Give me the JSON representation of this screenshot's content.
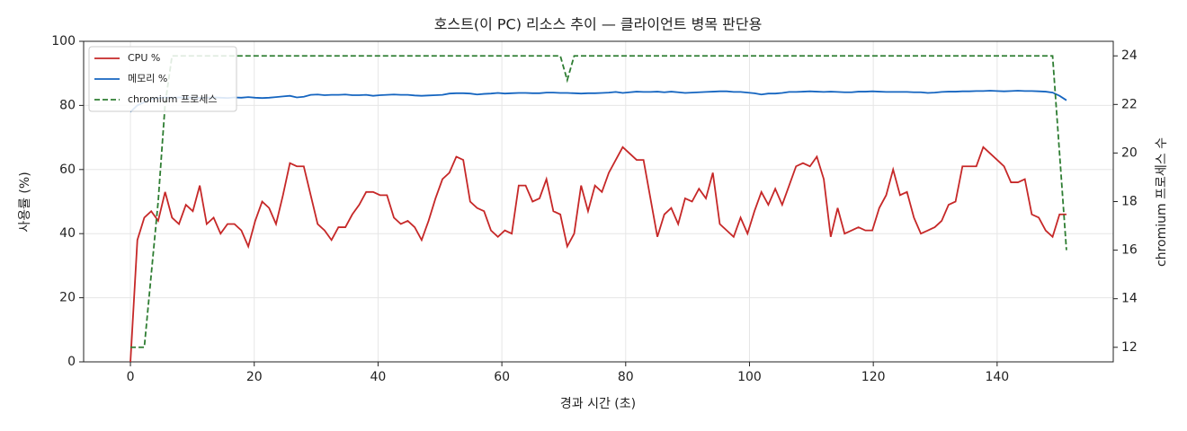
{
  "chart_data": {
    "type": "line",
    "title": "호스트(이 PC) 리소스 추이 — 클라이언트 병목 판단용",
    "xlabel": "경과 시간 (초)",
    "ylabel": "사용률 (%)",
    "y2label": "chromium 프로세스 수",
    "x": [
      0,
      1.12,
      2.24,
      3.36,
      4.48,
      5.6,
      6.72,
      7.84,
      8.96,
      10.08,
      11.2,
      12.32,
      13.44,
      14.56,
      15.68,
      16.8,
      17.92,
      19.04,
      20.16,
      21.28,
      22.4,
      23.52,
      24.64,
      25.76,
      26.88,
      28,
      29.12,
      30.24,
      31.36,
      32.48,
      33.6,
      34.72,
      35.84,
      36.96,
      38.08,
      39.2,
      40.32,
      41.44,
      42.56,
      43.68,
      44.8,
      45.92,
      47.04,
      48.16,
      49.28,
      50.4,
      51.52,
      52.64,
      53.76,
      54.88,
      56,
      57.12,
      58.24,
      59.36,
      60.48,
      61.6,
      62.72,
      63.84,
      64.96,
      66.08,
      67.2,
      68.32,
      69.44,
      70.56,
      71.68,
      72.8,
      73.92,
      75.04,
      76.16,
      77.28,
      78.4,
      79.52,
      80.64,
      81.76,
      82.88,
      84,
      85.12,
      86.24,
      87.36,
      88.48,
      89.6,
      90.72,
      91.84,
      92.96,
      94.08,
      95.2,
      96.32,
      97.44,
      98.56,
      99.68,
      100.8,
      101.92,
      103.04,
      104.16,
      105.28,
      106.4,
      107.52,
      108.64,
      109.76,
      110.88,
      112,
      113.12,
      114.24,
      115.36,
      116.48,
      117.6,
      118.72,
      119.84,
      120.96,
      122.08,
      123.2,
      124.32,
      125.44,
      126.56,
      127.68,
      128.8,
      129.92,
      131.04,
      132.16,
      133.28,
      134.4,
      135.52,
      136.64,
      137.76,
      138.88,
      140,
      141.12,
      142.24,
      143.36,
      144.48,
      145.6,
      146.72,
      147.84,
      148.96,
      150.08,
      151.2
    ],
    "series": [
      {
        "name": "CPU %",
        "color": "#c62828",
        "axis": "y",
        "linestyle": "solid",
        "values": [
          0,
          38,
          45,
          47,
          44,
          53,
          45,
          43,
          49,
          47,
          55,
          43,
          45,
          40,
          43,
          43,
          41,
          36,
          44,
          50,
          48,
          43,
          52,
          62,
          61,
          61,
          52,
          43,
          41,
          38,
          42,
          42,
          46,
          49,
          53,
          53,
          52,
          52,
          45,
          43,
          44,
          42,
          38,
          44,
          51,
          57,
          59,
          64,
          63,
          50,
          48,
          47,
          41,
          39,
          41,
          40,
          55,
          55,
          50,
          51,
          57,
          47,
          46,
          36,
          40,
          55,
          47,
          55,
          53,
          59,
          63,
          67,
          65,
          63,
          63,
          51,
          39,
          46,
          48,
          43,
          51,
          50,
          54,
          51,
          59,
          43,
          41,
          39,
          45,
          40,
          47,
          53,
          49,
          54,
          49,
          55,
          61,
          62,
          61,
          64,
          57,
          39,
          48,
          40,
          41,
          42,
          41,
          41,
          48,
          52,
          60,
          52,
          53,
          45,
          40,
          41,
          42,
          44,
          49,
          50,
          61,
          61,
          61,
          67,
          65,
          63,
          61,
          56,
          56,
          57,
          46,
          45,
          41,
          39,
          46,
          46
        ]
      },
      {
        "name": "메모리 %",
        "color": "#1565c0",
        "axis": "y",
        "linestyle": "solid",
        "values": [
          78,
          80,
          81,
          82,
          82.3,
          82.5,
          82.4,
          82.5,
          82.4,
          82.5,
          82.3,
          82.4,
          82.5,
          82.4,
          82.3,
          82.5,
          82.4,
          82.6,
          82.4,
          82.3,
          82.4,
          82.6,
          82.8,
          83,
          82.5,
          82.7,
          83.3,
          83.4,
          83.2,
          83.3,
          83.3,
          83.4,
          83.2,
          83.2,
          83.3,
          83,
          83.2,
          83.3,
          83.4,
          83.3,
          83.3,
          83.1,
          83,
          83.1,
          83.2,
          83.3,
          83.7,
          83.8,
          83.8,
          83.7,
          83.4,
          83.6,
          83.7,
          83.9,
          83.7,
          83.8,
          83.9,
          83.9,
          83.8,
          83.8,
          84,
          84,
          83.9,
          83.9,
          83.8,
          83.7,
          83.8,
          83.8,
          83.9,
          84,
          84.2,
          83.9,
          84.1,
          84.3,
          84.2,
          84.2,
          84.3,
          84.1,
          84.3,
          84.1,
          83.9,
          84,
          84.1,
          84.2,
          84.3,
          84.4,
          84.4,
          84.2,
          84.2,
          84,
          83.8,
          83.4,
          83.7,
          83.7,
          83.9,
          84.2,
          84.2,
          84.3,
          84.4,
          84.3,
          84.2,
          84.3,
          84.2,
          84.1,
          84.1,
          84.3,
          84.3,
          84.4,
          84.3,
          84.2,
          84.2,
          84.2,
          84.2,
          84.1,
          84.1,
          83.9,
          84,
          84.2,
          84.3,
          84.3,
          84.4,
          84.4,
          84.5,
          84.5,
          84.6,
          84.5,
          84.4,
          84.5,
          84.6,
          84.5,
          84.5,
          84.4,
          84.3,
          84,
          83,
          81.6
        ]
      },
      {
        "name": "chromium 프로세스",
        "color": "#2e7d32",
        "axis": "y2",
        "linestyle": "dashed",
        "values": [
          12,
          12,
          12,
          15,
          18,
          22,
          24,
          24,
          24,
          24,
          24,
          24,
          24,
          24,
          24,
          24,
          24,
          24,
          24,
          24,
          24,
          24,
          24,
          24,
          24,
          24,
          24,
          24,
          24,
          24,
          24,
          24,
          24,
          24,
          24,
          24,
          24,
          24,
          24,
          24,
          24,
          24,
          24,
          24,
          24,
          24,
          24,
          24,
          24,
          24,
          24,
          24,
          24,
          24,
          24,
          24,
          24,
          24,
          24,
          24,
          24,
          24,
          24,
          23,
          24,
          24,
          24,
          24,
          24,
          24,
          24,
          24,
          24,
          24,
          24,
          24,
          24,
          24,
          24,
          24,
          24,
          24,
          24,
          24,
          24,
          24,
          24,
          24,
          24,
          24,
          24,
          24,
          24,
          24,
          24,
          24,
          24,
          24,
          24,
          24,
          24,
          24,
          24,
          24,
          24,
          24,
          24,
          24,
          24,
          24,
          24,
          24,
          24,
          24,
          24,
          24,
          24,
          24,
          24,
          24,
          24,
          24,
          24,
          24,
          24,
          24,
          24,
          24,
          24,
          24,
          24,
          24,
          24,
          24,
          20,
          16
        ]
      }
    ],
    "xlim": [
      -7.56,
      158.76
    ],
    "xticks": [
      0,
      20,
      40,
      60,
      80,
      100,
      120,
      140
    ],
    "ylim": [
      0,
      100
    ],
    "yticks": [
      0,
      20,
      40,
      60,
      80,
      100
    ],
    "y2lim": [
      11.4,
      24.6
    ],
    "y2ticks": [
      12,
      14,
      16,
      18,
      20,
      22,
      24
    ],
    "grid": true,
    "legend": "upper left"
  }
}
